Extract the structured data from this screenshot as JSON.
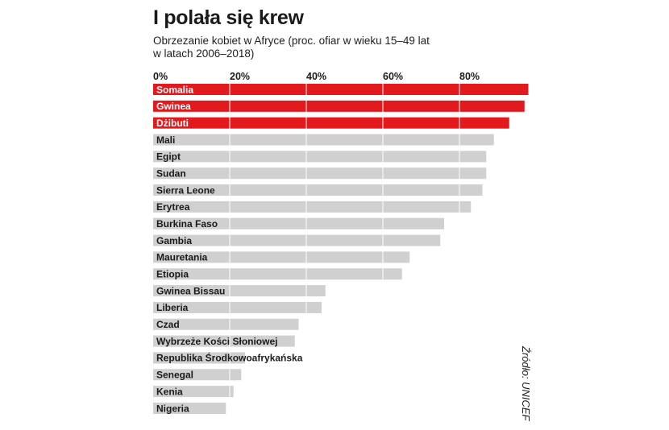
{
  "header": {
    "title": "I polała się krew",
    "subtitle_line1": "Obrzezanie kobiet w Afryce (proc. ofiar w wieku 15–49 lat",
    "subtitle_line2": "w latach 2006–2018)"
  },
  "source": "Źródło: UNICEF",
  "colors": {
    "highlight": "#e2191d",
    "bar": "#d0d0d0",
    "grid": "#ffffff",
    "text": "#1a1a1a"
  },
  "chart_data": {
    "type": "bar",
    "orientation": "horizontal",
    "title": "I polała się krew",
    "subtitle": "Obrzezanie kobiet w Afryce (proc. ofiar w wieku 15–49 lat w latach 2006–2018)",
    "xlim": [
      0,
      100
    ],
    "xticks": [
      "0%",
      "20%",
      "40%",
      "60%",
      "80%"
    ],
    "xtick_values": [
      0,
      20,
      40,
      60,
      80
    ],
    "grid": true,
    "categories": [
      "Somalia",
      "Gwinea",
      "Dżibuti",
      "Mali",
      "Egipt",
      "Sudan",
      "Sierra Leone",
      "Erytrea",
      "Burkina Faso",
      "Gambia",
      "Mauretania",
      "Etiopia",
      "Gwinea Bissau",
      "Liberia",
      "Czad",
      "Wybrzeże Kości Słoniowej",
      "Republika Środkowoafrykańska",
      "Senegal",
      "Kenia",
      "Nigeria"
    ],
    "values": [
      98,
      97,
      93,
      89,
      87,
      87,
      86,
      83,
      76,
      75,
      67,
      65,
      45,
      44,
      38,
      37,
      24,
      23,
      21,
      19
    ],
    "highlighted": [
      "Somalia",
      "Gwinea",
      "Dżibuti"
    ]
  }
}
